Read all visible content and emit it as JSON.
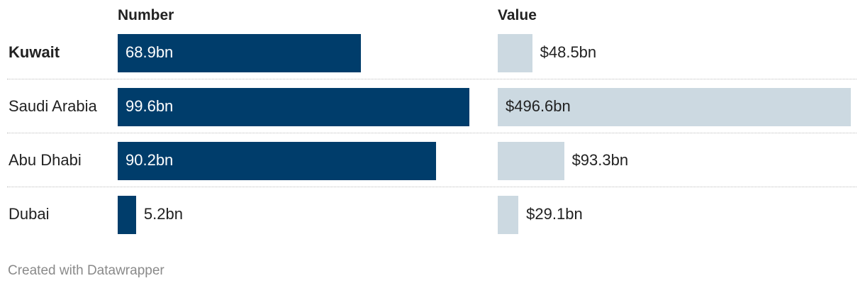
{
  "chart_data": {
    "type": "bar",
    "layout": "split-bars",
    "categories": [
      "Kuwait",
      "Saudi Arabia",
      "Abu Dhabi",
      "Dubai"
    ],
    "highlighted_category": "Kuwait",
    "series": [
      {
        "name": "Number",
        "values": [
          68.9,
          99.6,
          90.2,
          5.2
        ],
        "labels": [
          "68.9bn",
          "99.6bn",
          "90.2bn",
          "5.2bn"
        ],
        "color": "#003d6b",
        "label_color_inside": "#ffffff",
        "label_color_outside": "#222222",
        "xlim": [
          0,
          99.6
        ]
      },
      {
        "name": "Value",
        "values": [
          48.5,
          496.6,
          93.3,
          29.1
        ],
        "labels": [
          "$48.5bn",
          "$496.6bn",
          "$93.3bn",
          "$29.1bn"
        ],
        "color": "#ccd9e1",
        "label_color_inside": "#222222",
        "label_color_outside": "#222222",
        "xlim": [
          0,
          496.6
        ]
      }
    ]
  },
  "footer": "Created with Datawrapper"
}
